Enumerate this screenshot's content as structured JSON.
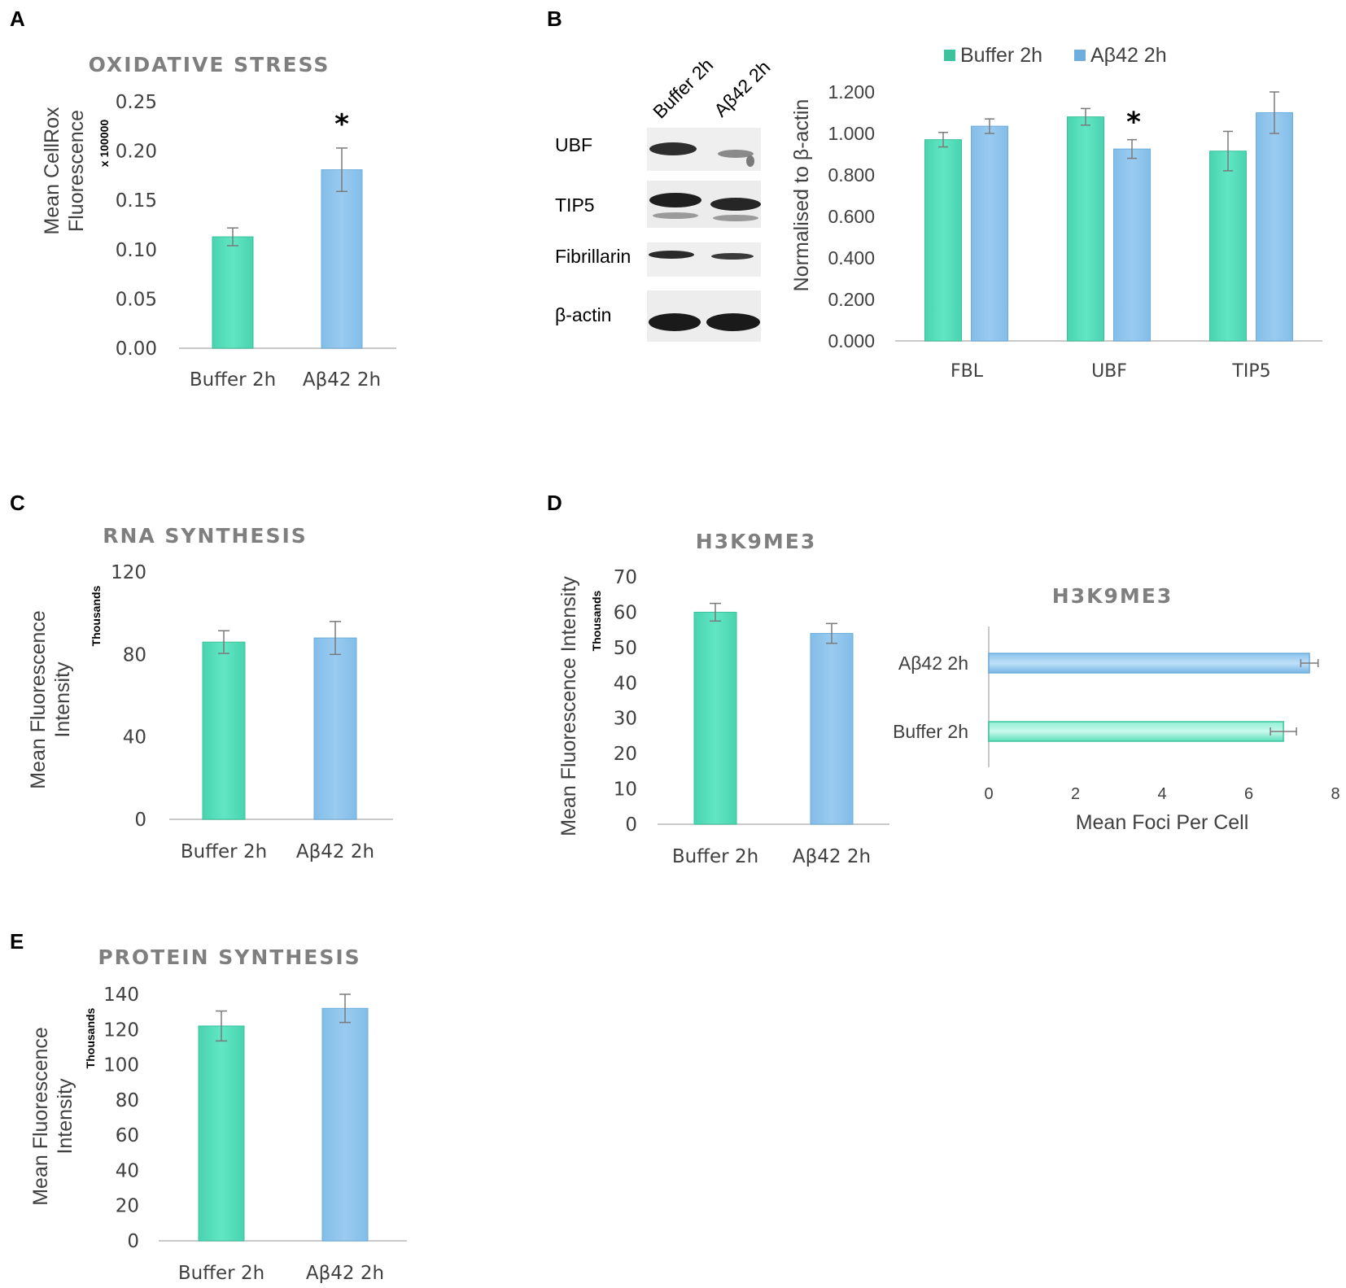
{
  "panel_letters": {
    "a": "A",
    "b": "B",
    "c": "C",
    "d": "D",
    "e": "E"
  },
  "colors": {
    "buffer": "#5ee0bd",
    "buffer_edge": "#3cc39c",
    "abeta": "#93c7ee",
    "abeta_edge": "#6eaedc",
    "axis": "#c9c9c9",
    "error": "#7a7a7a"
  },
  "legend": {
    "buffer": "Buffer 2h",
    "abeta": "Aβ42 2h"
  },
  "western_blot": {
    "lanes": [
      "Buffer 2h",
      "Aβ42 2h"
    ],
    "bands": [
      "UBF",
      "TIP5",
      "Fibrillarin",
      "β-actin"
    ]
  },
  "chart_data": [
    {
      "id": "A",
      "type": "bar",
      "title": "OXIDATIVE STRESS",
      "ylabel_line1": "Mean CellRox",
      "ylabel_line2": "Fluorescence",
      "unit_label": "x 100000",
      "categories": [
        "Buffer 2h",
        "Aβ42 2h"
      ],
      "values": [
        0.113,
        0.181
      ],
      "errors": [
        0.009,
        0.022
      ],
      "significance": [
        "",
        "*"
      ],
      "ylim": [
        0,
        0.25
      ],
      "yticks": [
        "0.00",
        "0.05",
        "0.10",
        "0.15",
        "0.20",
        "0.25"
      ]
    },
    {
      "id": "B",
      "type": "bar",
      "title": "",
      "ylabel": "Normalised to β-actin",
      "categories": [
        "FBL",
        "UBF",
        "TIP5"
      ],
      "series": [
        {
          "name": "Buffer 2h",
          "values": [
            0.97,
            1.08,
            0.915
          ],
          "errors": [
            0.035,
            0.04,
            0.095
          ]
        },
        {
          "name": "Aβ42 2h",
          "values": [
            1.035,
            0.925,
            1.1
          ],
          "errors": [
            0.035,
            0.045,
            0.1
          ]
        }
      ],
      "significance": [
        "",
        "*",
        ""
      ],
      "ylim": [
        0,
        1.2
      ],
      "yticks": [
        "0.000",
        "0.200",
        "0.400",
        "0.600",
        "0.800",
        "1.000",
        "1.200"
      ]
    },
    {
      "id": "C",
      "type": "bar",
      "title": "RNA SYNTHESIS",
      "ylabel_line1": "Mean Fluorescence",
      "ylabel_line2": "Intensity",
      "unit_label": "Thousands",
      "categories": [
        "Buffer 2h",
        "Aβ42 2h"
      ],
      "values": [
        86,
        88
      ],
      "errors": [
        5.5,
        8
      ],
      "ylim": [
        0,
        120
      ],
      "yticks": [
        "0",
        "40",
        "80",
        "120"
      ]
    },
    {
      "id": "D1",
      "type": "bar",
      "title": "H3K9ME3",
      "ylabel": "Mean Fluorescence  Intensity",
      "unit_label": "Thousands",
      "categories": [
        "Buffer 2h",
        "Aβ42 2h"
      ],
      "values": [
        60,
        54
      ],
      "errors": [
        2.5,
        2.8
      ],
      "ylim": [
        0,
        70
      ],
      "yticks": [
        "0",
        "10",
        "20",
        "30",
        "40",
        "50",
        "60",
        "70"
      ]
    },
    {
      "id": "D2",
      "type": "bar",
      "orientation": "horizontal",
      "title": "H3K9ME3",
      "xlabel": "Mean Foci Per Cell",
      "categories": [
        "Aβ42 2h",
        "Buffer 2h"
      ],
      "values": [
        7.4,
        6.8
      ],
      "errors": [
        0.2,
        0.3
      ],
      "xlim": [
        0,
        8
      ],
      "xticks": [
        "0",
        "2",
        "4",
        "6",
        "8"
      ]
    },
    {
      "id": "E",
      "type": "bar",
      "title": "PROTEIN SYNTHESIS",
      "ylabel_line1": "Mean Fluorescence",
      "ylabel_line2": "Intensity",
      "unit_label": "Thousands",
      "categories": [
        "Buffer 2h",
        "Aβ42 2h"
      ],
      "values": [
        122,
        132
      ],
      "errors": [
        8.5,
        8
      ],
      "ylim": [
        0,
        140
      ],
      "yticks": [
        "0",
        "20",
        "40",
        "60",
        "80",
        "100",
        "120",
        "140"
      ]
    }
  ]
}
